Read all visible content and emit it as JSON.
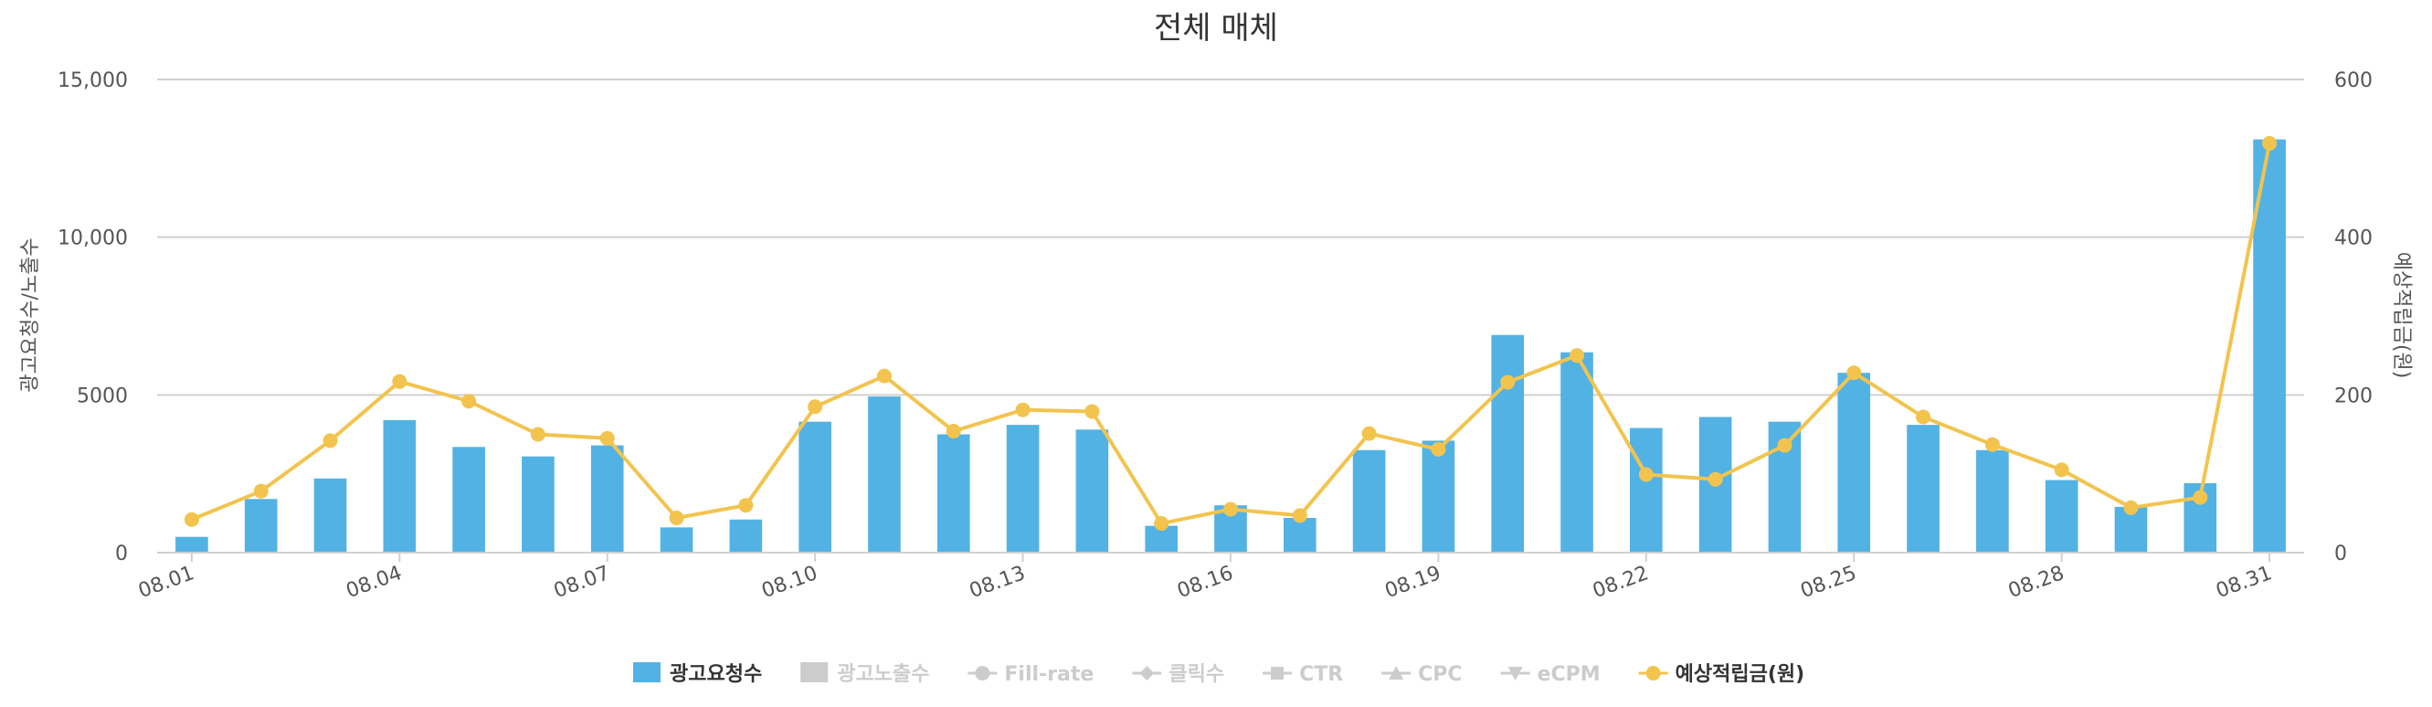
{
  "chart_data": {
    "type": "bar+line",
    "title": "전체 매체",
    "categories": [
      "08.01",
      "08.02",
      "08.03",
      "08.04",
      "08.05",
      "08.06",
      "08.07",
      "08.08",
      "08.09",
      "08.10",
      "08.11",
      "08.12",
      "08.13",
      "08.14",
      "08.15",
      "08.16",
      "08.17",
      "08.18",
      "08.19",
      "08.20",
      "08.21",
      "08.22",
      "08.23",
      "08.24",
      "08.25",
      "08.26",
      "08.27",
      "08.28",
      "08.29",
      "08.30",
      "08.31"
    ],
    "visible_tick_labels": [
      "08.01",
      "08.04",
      "08.07",
      "08.10",
      "08.13",
      "08.16",
      "08.19",
      "08.22",
      "08.25",
      "08.28",
      "08.31"
    ],
    "highlighted_tick_labels": [
      "08.01",
      "08.16",
      "08.22"
    ],
    "series": [
      {
        "name": "광고요청수",
        "type": "bar",
        "axis": "left",
        "color": "#52b2e4",
        "values": [
          500,
          1700,
          2350,
          4200,
          3350,
          3050,
          3400,
          800,
          1050,
          4150,
          4950,
          3750,
          4050,
          3900,
          850,
          1500,
          1100,
          3250,
          3550,
          6900,
          6350,
          3950,
          4300,
          4150,
          5700,
          4050,
          3250,
          2300,
          1450,
          2200,
          13100
        ]
      },
      {
        "name": "예상적립금(원)",
        "type": "line",
        "axis": "right",
        "color": "#f2c44e",
        "values": [
          42,
          78,
          142,
          217,
          192,
          150,
          145,
          44,
          60,
          185,
          224,
          154,
          181,
          179,
          37,
          55,
          47,
          151,
          131,
          216,
          250,
          99,
          93,
          136,
          228,
          172,
          137,
          105,
          57,
          70,
          519
        ]
      }
    ],
    "left_axis": {
      "label": "광고요청수/노출수",
      "ylim": [
        0,
        15000
      ],
      "ticks": [
        0,
        5000,
        10000,
        15000
      ],
      "tick_labels": [
        "0",
        "5000",
        "10,000",
        "15,000"
      ]
    },
    "right_axis": {
      "label": "예상적립금(원)",
      "ylim": [
        0,
        600
      ],
      "ticks": [
        0,
        200,
        400,
        600
      ],
      "tick_labels": [
        "0",
        "200",
        "400",
        "600"
      ]
    },
    "grid": true,
    "legend_position": "bottom-center",
    "legend": [
      {
        "label": "광고요청수",
        "symbol": "rect",
        "active": true,
        "color": "#52b2e4"
      },
      {
        "label": "광고노출수",
        "symbol": "rect",
        "active": false,
        "color": "#cccccc"
      },
      {
        "label": "Fill-rate",
        "symbol": "circle",
        "active": false,
        "color": "#cccccc"
      },
      {
        "label": "클릭수",
        "symbol": "diamond",
        "active": false,
        "color": "#cccccc"
      },
      {
        "label": "CTR",
        "symbol": "square",
        "active": false,
        "color": "#cccccc"
      },
      {
        "label": "CPC",
        "symbol": "triangle",
        "active": false,
        "color": "#cccccc"
      },
      {
        "label": "eCPM",
        "symbol": "triangle-down",
        "active": false,
        "color": "#cccccc"
      },
      {
        "label": "예상적립금(원)",
        "symbol": "circle",
        "active": true,
        "color": "#f2c44e"
      }
    ],
    "colors": {
      "text": "#333333",
      "tick": "#555555",
      "grid": "#d0d0d0",
      "weekend": "#e8221e"
    }
  }
}
